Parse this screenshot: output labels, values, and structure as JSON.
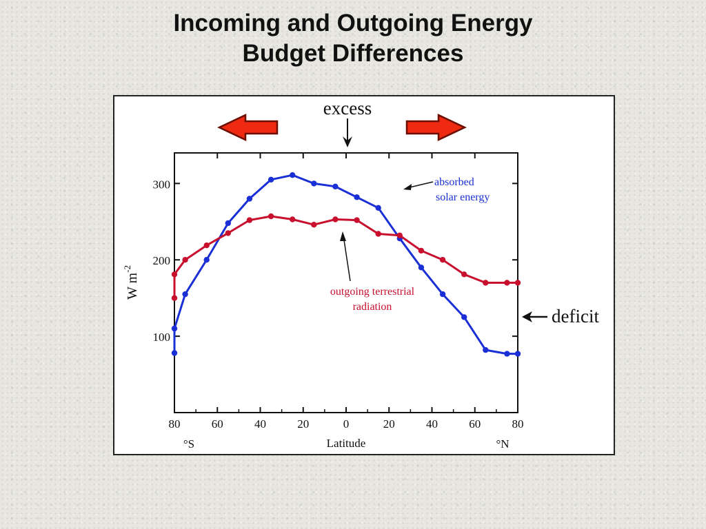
{
  "slide": {
    "title_line1": "Incoming and Outgoing Energy",
    "title_line2": "Budget Differences"
  },
  "chart_data": {
    "type": "line",
    "xlabel": "Latitude",
    "ylabel": "W m",
    "ylabel_superscript": "-2",
    "xlim": [
      -80,
      80
    ],
    "ylim": [
      0,
      340
    ],
    "yticks": [
      100,
      200,
      300
    ],
    "ytick_labels": [
      "100",
      "200",
      "300"
    ],
    "xticks": [
      -80,
      -60,
      -40,
      -20,
      0,
      20,
      40,
      60,
      80
    ],
    "xtick_labels": [
      "80",
      "60",
      "40",
      "20",
      "0",
      "20",
      "40",
      "60",
      "80"
    ],
    "hemisphere_labels": {
      "south": "°S",
      "north": "°N"
    },
    "series": [
      {
        "name": "absorbed solar energy",
        "label_line1": "absorbed",
        "label_line2": "solar energy",
        "color": "#1a2fd6",
        "x": [
          -85,
          -80,
          -75,
          -65,
          -55,
          -45,
          -35,
          -25,
          -15,
          -5,
          5,
          15,
          25,
          35,
          45,
          55,
          65,
          75,
          85
        ],
        "y": [
          78,
          110,
          155,
          200,
          248,
          280,
          305,
          311,
          300,
          296,
          282,
          268,
          228,
          190,
          155,
          125,
          82,
          77,
          77
        ]
      },
      {
        "name": "outgoing terrestrial radiation",
        "label_line1": "outgoing terrestrial",
        "label_line2": "radiation",
        "color": "#c8102e",
        "x": [
          -85,
          -80,
          -75,
          -65,
          -55,
          -45,
          -35,
          -25,
          -15,
          -5,
          5,
          15,
          25,
          35,
          45,
          55,
          65,
          75,
          85
        ],
        "y": [
          150,
          181,
          200,
          219,
          235,
          252,
          257,
          253,
          246,
          253,
          252,
          234,
          232,
          212,
          200,
          181,
          170,
          170,
          170
        ]
      }
    ],
    "annotations": {
      "excess": "excess",
      "deficit": "deficit"
    },
    "colors": {
      "arrow_fill": "#ee2a12",
      "arrow_stroke": "#6b0e00",
      "frame": "#111111"
    }
  }
}
